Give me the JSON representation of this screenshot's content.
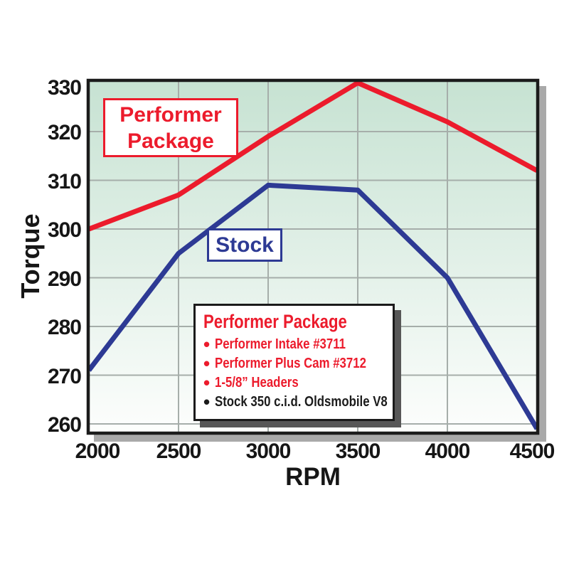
{
  "chart_data": {
    "type": "line",
    "title": "",
    "xlabel": "RPM",
    "ylabel": "Torque",
    "x": [
      2000,
      2500,
      3000,
      3500,
      4000,
      4500
    ],
    "xticks": [
      "2000",
      "2500",
      "3000",
      "3500",
      "4000",
      "4500"
    ],
    "yticks": [
      "330",
      "320",
      "310",
      "300",
      "290",
      "280",
      "270",
      "260"
    ],
    "xlim": [
      2000,
      4500
    ],
    "ylim": [
      257,
      331
    ],
    "grid": true,
    "legend_position": "inside-bottom-center",
    "series": [
      {
        "name": "Performer Package",
        "color": "#ec1b2c",
        "values": [
          300,
          307,
          319,
          330,
          322,
          312
        ]
      },
      {
        "name": "Stock",
        "color": "#2d3a94",
        "values": [
          271,
          295,
          309,
          308,
          290,
          259
        ]
      }
    ]
  },
  "annotations": {
    "performer_label": "Performer\nPackage",
    "stock_label": "Stock"
  },
  "legend": {
    "title": "Performer Package",
    "items": [
      {
        "text": "Performer Intake #3711",
        "color": "#ec1b2c"
      },
      {
        "text": "Performer Plus Cam #3712",
        "color": "#ec1b2c"
      },
      {
        "text": "1-5/8” Headers",
        "color": "#ec1b2c"
      },
      {
        "text": "Stock 350 c.i.d. Oldsmobile V8",
        "color": "#1b1b1b"
      }
    ]
  },
  "colors": {
    "red": "#ec1b2c",
    "blue": "#2d3a94",
    "grid": "#a6aeaa",
    "border": "#1b1b1b",
    "plot_bg_top": "#c6e2d2",
    "plot_bg_bottom": "#fdfefd",
    "plot_shadow": "#a9a9a9",
    "legend_shadow": "#575757",
    "text": "#161616"
  }
}
